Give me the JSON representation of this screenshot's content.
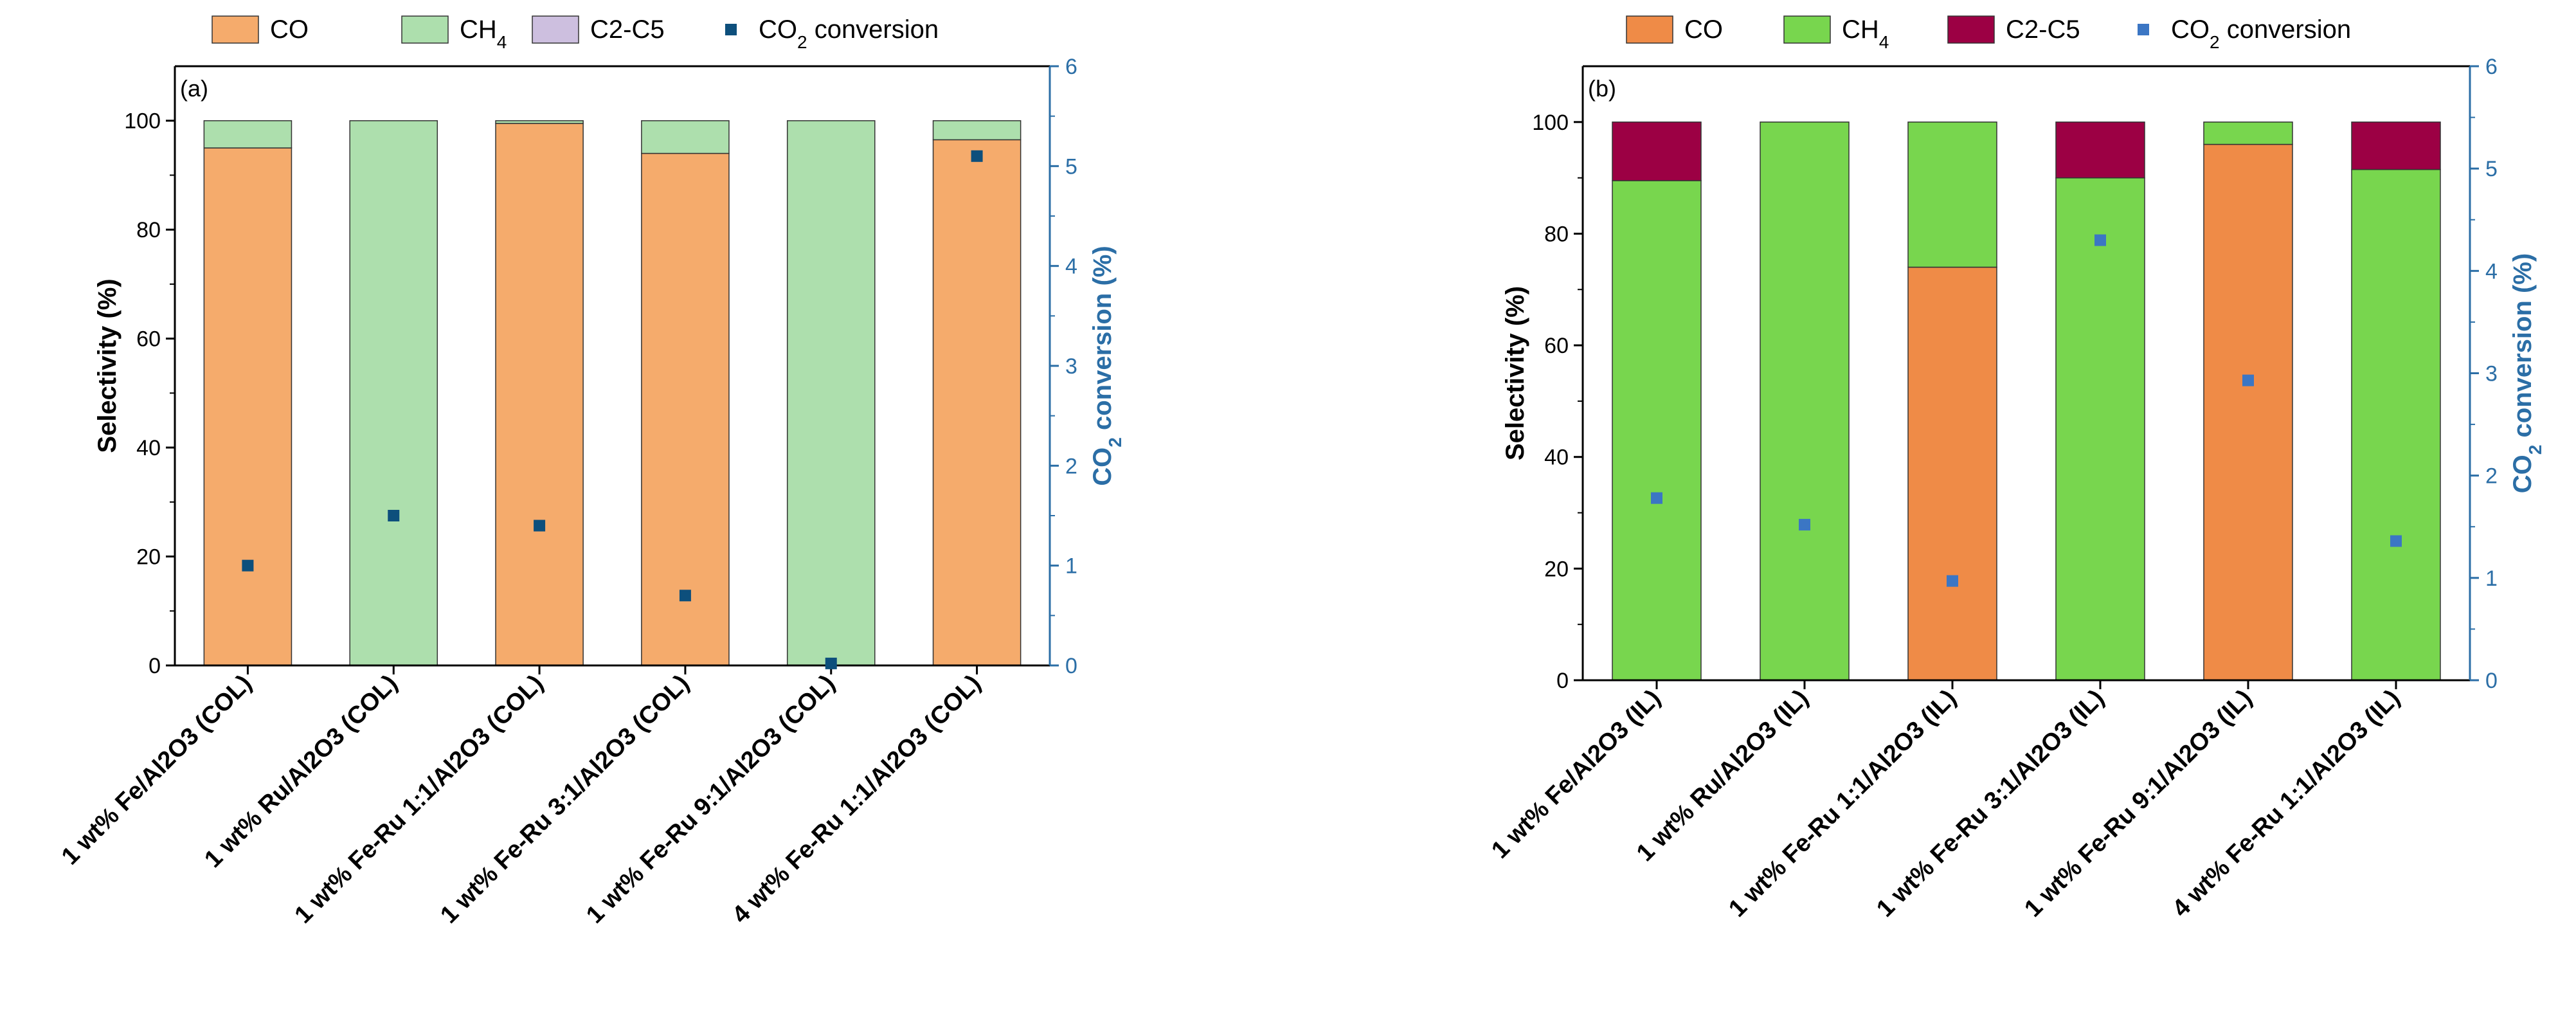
{
  "colors": {
    "axis": "#000000",
    "right_axis": "#2b6ea6",
    "panel_a": {
      "CO": "#f5ab6c",
      "CH4": "#addfad",
      "C2-C5": "#cdbfdf",
      "marker": "#0d4f7c"
    },
    "panel_b": {
      "CO": "#ef8b47",
      "CH4": "#78d64e",
      "C2-C5": "#9c0044",
      "marker": "#3b76c4"
    }
  },
  "chart_data": [
    {
      "panel_label": "(a)",
      "type": "bar",
      "stacked": true,
      "categories": [
        "1 wt% Fe/Al2O3 (COL)",
        "1 wt% Ru/Al2O3 (COL)",
        "1 wt% Fe-Ru 1:1/Al2O3 (COL)",
        "1 wt% Fe-Ru 3:1/Al2O3 (COL)",
        "1 wt% Fe-Ru 9:1/Al2O3 (COL)",
        "4 wt% Fe-Ru 1:1/Al2O3 (COL)"
      ],
      "series": [
        {
          "name": "CO",
          "values": [
            95,
            0,
            99.5,
            94,
            0,
            96.5
          ]
        },
        {
          "name": "CH4",
          "values": [
            5,
            100,
            0.5,
            6,
            100,
            3.5
          ]
        },
        {
          "name": "C2-C5",
          "values": [
            0,
            0,
            0,
            0,
            0,
            0
          ]
        }
      ],
      "scatter": {
        "name": "CO2 conversion",
        "axis": "right",
        "values": [
          1.0,
          1.5,
          1.4,
          0.7,
          0.02,
          5.1
        ]
      },
      "legend": [
        {
          "kind": "box",
          "series": "CO",
          "text": "CO",
          "sub": ""
        },
        {
          "kind": "box",
          "series": "CH4",
          "text": "CH",
          "sub": "4"
        },
        {
          "kind": "box",
          "series": "C2-C5",
          "text": "C2-C5",
          "sub": ""
        },
        {
          "kind": "marker",
          "series": "CO2 conversion",
          "text": "CO",
          "sub": "2",
          "tail": " conversion"
        }
      ],
      "ylabel": "Selectivity (%)",
      "ylim": [
        0,
        110
      ],
      "yticks": [
        0,
        20,
        40,
        60,
        80,
        100
      ],
      "y2label": {
        "text": "CO",
        "sub": "2",
        "tail": " conversion (%)"
      },
      "y2lim": [
        0,
        6
      ],
      "y2ticks": [
        0,
        1,
        2,
        3,
        4,
        5,
        6
      ],
      "legend_position": "top"
    },
    {
      "panel_label": "(b)",
      "type": "bar",
      "stacked": true,
      "categories": [
        "1 wt% Fe/Al2O3 (IL)",
        "1 wt% Ru/Al2O3 (IL)",
        "1 wt% Fe-Ru 1:1/Al2O3 (IL)",
        "1 wt% Fe-Ru 3:1/Al2O3 (IL)",
        "1 wt% Fe-Ru 9:1/Al2O3 (IL)",
        "4 wt% Fe-Ru 1:1/Al2O3 (IL)"
      ],
      "series": [
        {
          "name": "CO",
          "values": [
            0,
            0,
            74,
            0,
            96,
            0
          ]
        },
        {
          "name": "CH4",
          "values": [
            89.5,
            100,
            26,
            90,
            4,
            91.5
          ]
        },
        {
          "name": "C2-C5",
          "values": [
            10.5,
            0,
            0,
            10,
            0,
            8.5
          ]
        }
      ],
      "scatter": {
        "name": "CO2 conversion",
        "axis": "right",
        "values": [
          1.78,
          1.52,
          0.97,
          4.3,
          2.93,
          1.36
        ]
      },
      "legend": [
        {
          "kind": "box",
          "series": "CO",
          "text": "CO",
          "sub": ""
        },
        {
          "kind": "box",
          "series": "CH4",
          "text": "CH",
          "sub": "4"
        },
        {
          "kind": "box",
          "series": "C2-C5",
          "text": "C2-C5",
          "sub": ""
        },
        {
          "kind": "marker",
          "series": "CO2 conversion",
          "text": "CO",
          "sub": "2",
          "tail": " conversion"
        }
      ],
      "ylabel": "Selectivity (%)",
      "ylim": [
        0,
        110
      ],
      "yticks": [
        0,
        20,
        40,
        60,
        80,
        100
      ],
      "y2label": {
        "text": "CO",
        "sub": "2",
        "tail": " conversion (%)"
      },
      "y2lim": [
        0,
        6
      ],
      "y2ticks": [
        0,
        1,
        2,
        3,
        4,
        5,
        6
      ],
      "legend_position": "top"
    }
  ]
}
